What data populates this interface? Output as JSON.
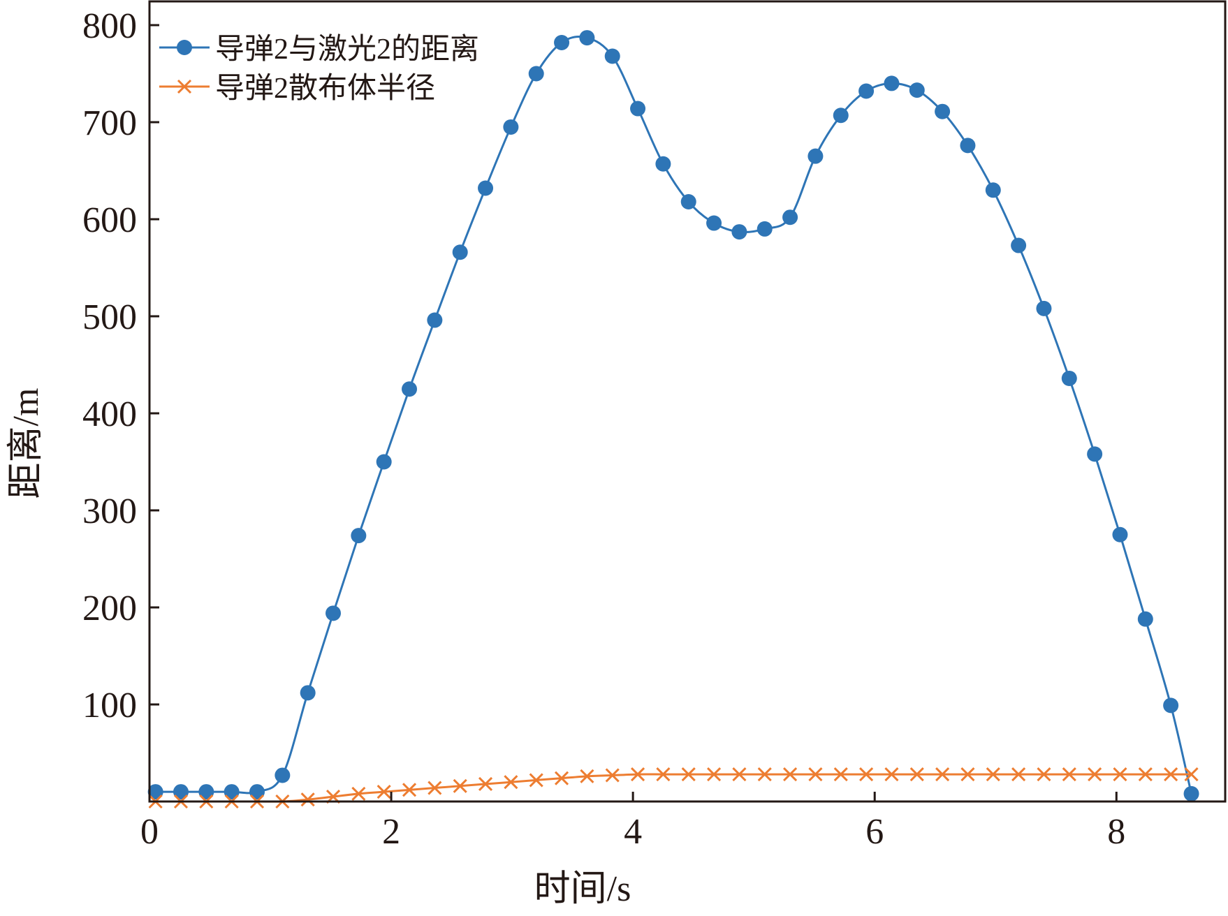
{
  "chart_data": {
    "type": "line",
    "xlabel": "时间/s",
    "ylabel": "距离/m",
    "xlim": [
      0,
      8.9
    ],
    "ylim": [
      0,
      800
    ],
    "xticks": [
      0,
      2,
      4,
      6,
      8
    ],
    "yticks": [
      100,
      200,
      300,
      400,
      500,
      600,
      700,
      800
    ],
    "xtick_labels": [
      "0",
      "2",
      "4",
      "6",
      "8"
    ],
    "ytick_labels": [
      "100",
      "200",
      "300",
      "400",
      "500",
      "600",
      "700",
      "800"
    ],
    "grid": false,
    "legend_position": "top-left",
    "series": [
      {
        "name": "导弹2与激光2的距离",
        "color": "#2e75b6",
        "marker": "circle",
        "x": [
          0.05,
          0.26,
          0.47,
          0.68,
          0.89,
          1.1,
          1.31,
          1.52,
          1.73,
          1.94,
          2.15,
          2.36,
          2.57,
          2.78,
          2.99,
          3.2,
          3.41,
          3.62,
          3.83,
          4.04,
          4.25,
          4.46,
          4.67,
          4.88,
          5.09,
          5.3,
          5.51,
          5.72,
          5.93,
          6.14,
          6.35,
          6.56,
          6.77,
          6.98,
          7.19,
          7.4,
          7.61,
          7.82,
          8.03,
          8.24,
          8.45,
          8.62
        ],
        "y": [
          10,
          10,
          10,
          10,
          10,
          27,
          112,
          194,
          274,
          350,
          425,
          496,
          566,
          632,
          695,
          750,
          782,
          787,
          768,
          714,
          657,
          618,
          596,
          587,
          590,
          602,
          665,
          707,
          732,
          740,
          733,
          711,
          676,
          630,
          573,
          508,
          436,
          358,
          275,
          188,
          99,
          8
        ]
      },
      {
        "name": "导弹2散布体半径",
        "color": "#ed7d31",
        "marker": "x",
        "x": [
          0.05,
          0.26,
          0.47,
          0.68,
          0.89,
          1.1,
          1.31,
          1.52,
          1.73,
          1.94,
          2.15,
          2.36,
          2.57,
          2.78,
          2.99,
          3.2,
          3.41,
          3.62,
          3.83,
          4.04,
          4.25,
          4.46,
          4.67,
          4.88,
          5.09,
          5.3,
          5.51,
          5.72,
          5.93,
          6.14,
          6.35,
          6.56,
          6.77,
          6.98,
          7.19,
          7.4,
          7.61,
          7.82,
          8.03,
          8.24,
          8.45,
          8.62
        ],
        "y": [
          0,
          0,
          0,
          0,
          0,
          0,
          2,
          5,
          8,
          10,
          12,
          14,
          16,
          18,
          20,
          22,
          24,
          26,
          27,
          28,
          28,
          28,
          28,
          28,
          28,
          28,
          28,
          28,
          28,
          28,
          28,
          28,
          28,
          28,
          28,
          28,
          28,
          28,
          28,
          28,
          28,
          28
        ]
      }
    ]
  }
}
